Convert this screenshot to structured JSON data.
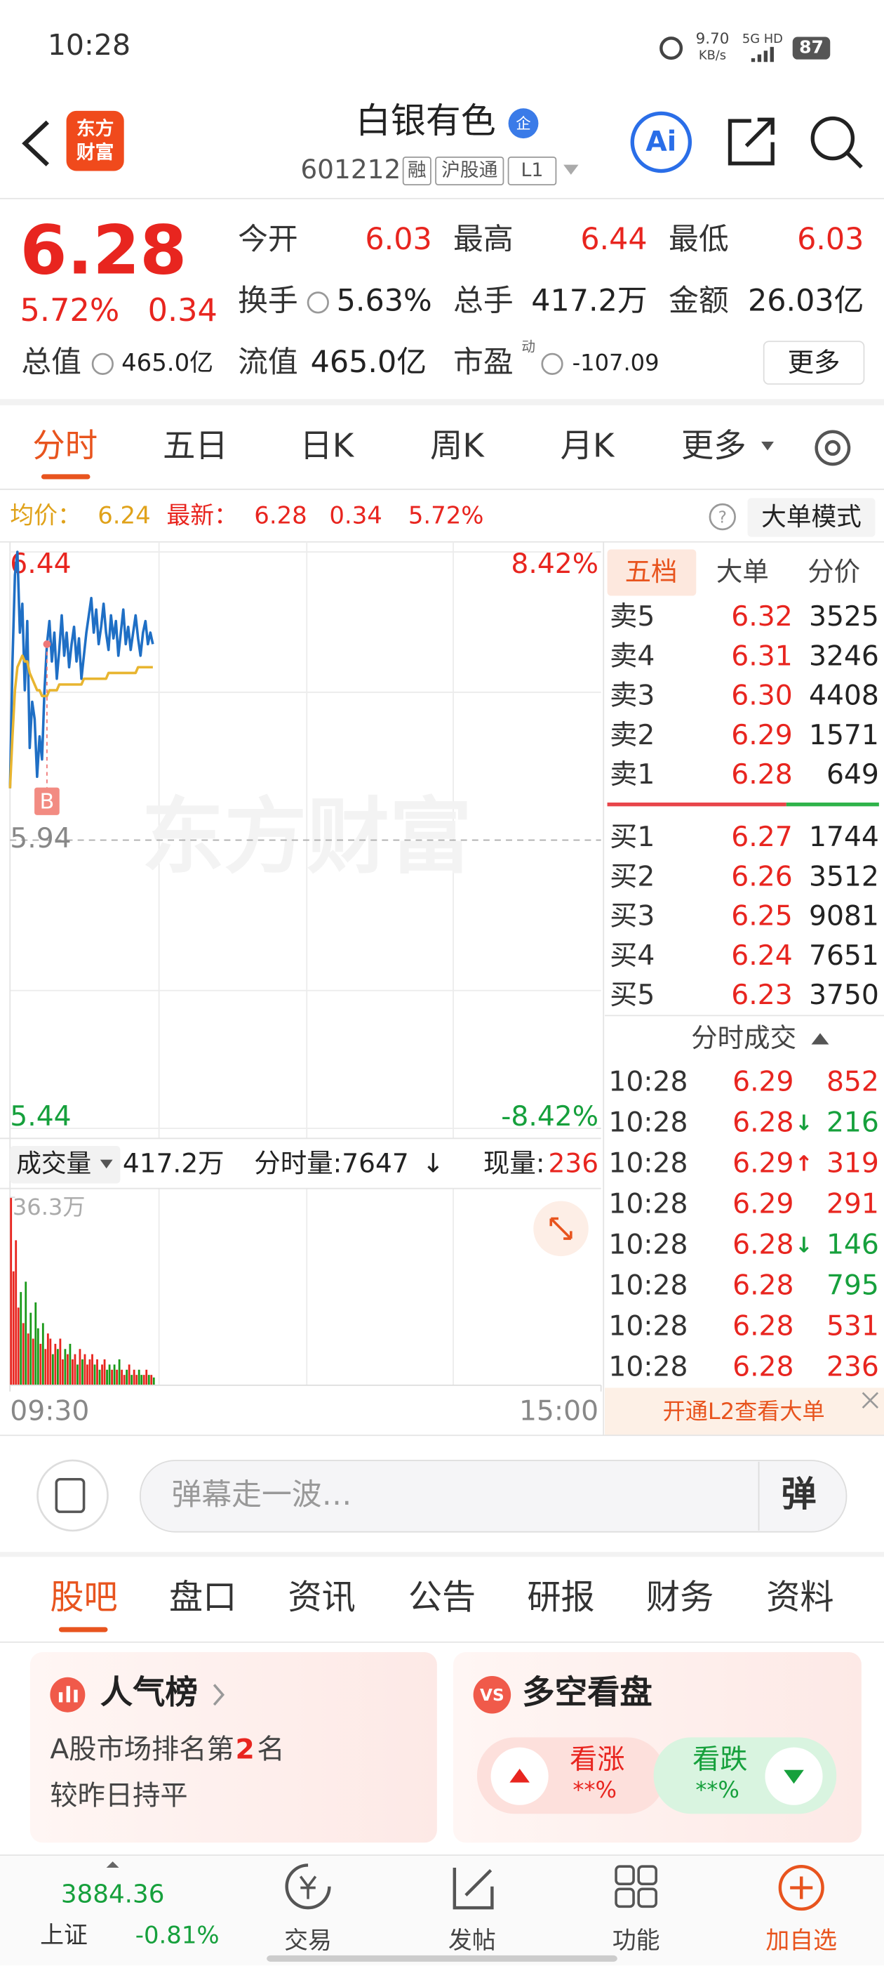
{
  "status_bar": {
    "time": "10:28",
    "net_speed": "9.70",
    "net_unit": "KB/s",
    "network": "5G HD",
    "battery": "87"
  },
  "header": {
    "logo": [
      "东方",
      "财富"
    ],
    "title": "白银有色",
    "badge": "企",
    "code": "601212",
    "tags": [
      "融",
      "沪股通",
      "L1"
    ],
    "ai": "Ai"
  },
  "quote": {
    "price": "6.28",
    "change_pct": "5.72%",
    "change": "0.34",
    "fields": [
      {
        "label": "今开",
        "value": "6.03"
      },
      {
        "label": "最高",
        "value": "6.44"
      },
      {
        "label": "最低",
        "value": "6.03"
      },
      {
        "label": "换手",
        "value": "5.63%"
      },
      {
        "label": "总手",
        "value": "417.2万"
      },
      {
        "label": "金额",
        "value": "26.03亿"
      },
      {
        "label": "总值",
        "value": "465.0亿"
      },
      {
        "label": "流值",
        "value": "465.0亿"
      },
      {
        "label": "市盈",
        "sup": "动",
        "value": "-107.09"
      }
    ],
    "more": "更多"
  },
  "tabs": [
    "分时",
    "五日",
    "日K",
    "周K",
    "月K",
    "更多"
  ],
  "info": {
    "avg_label": "均价：",
    "avg": "6.24",
    "latest_label": "最新：",
    "latest": "6.28",
    "change": "0.34",
    "change_pct": "5.72%",
    "help": "?",
    "mode": "大单模式"
  },
  "chart_data": [
    {
      "type": "line",
      "watermark": "东方财富",
      "annotations": [
        "B"
      ],
      "x": [
        0,
        1,
        2,
        3,
        4,
        5,
        6,
        7,
        8,
        9,
        10,
        11,
        12,
        13,
        14,
        15,
        16,
        17,
        18,
        19,
        20,
        21,
        22,
        23,
        24,
        25,
        26,
        27,
        28,
        29,
        30,
        31,
        32,
        33,
        34,
        35,
        36,
        37,
        38,
        39,
        40,
        41,
        42,
        43,
        44,
        45,
        46,
        47,
        48,
        49,
        50,
        51,
        52,
        53,
        54,
        55,
        56,
        57,
        58
      ],
      "xlim": [
        0,
        240
      ],
      "xticks": [
        {
          "value": 0,
          "label": "09:30"
        },
        {
          "value": 240,
          "label": "15:00"
        }
      ],
      "ylim": [
        5.44,
        6.44
      ],
      "yticks": [
        6.44,
        5.94,
        5.44
      ],
      "y2lim": [
        -8.42,
        8.42
      ],
      "y2ticks": [
        {
          "value": 8.42,
          "label": "8.42%"
        },
        {
          "value": -8.42,
          "label": "-8.42%"
        }
      ],
      "series": [
        {
          "color": "#1f6fc5",
          "values": [
            6.03,
            6.25,
            6.4,
            6.44,
            6.3,
            6.35,
            6.2,
            6.32,
            6.1,
            6.18,
            6.15,
            6.05,
            6.12,
            6.08,
            6.2,
            6.28,
            6.32,
            6.25,
            6.3,
            6.22,
            6.27,
            6.33,
            6.26,
            6.3,
            6.24,
            6.28,
            6.31,
            6.25,
            6.29,
            6.22,
            6.26,
            6.3,
            6.33,
            6.36,
            6.3,
            6.34,
            6.28,
            6.31,
            6.35,
            6.3,
            6.27,
            6.33,
            6.29,
            6.32,
            6.26,
            6.3,
            6.34,
            6.28,
            6.31,
            6.27,
            6.3,
            6.33,
            6.29,
            6.26,
            6.3,
            6.32,
            6.28,
            6.3,
            6.28
          ]
        },
        {
          "color": "#e8b530",
          "values": [
            6.03,
            6.12,
            6.2,
            6.24,
            6.25,
            6.26,
            6.25,
            6.25,
            6.23,
            6.22,
            6.21,
            6.2,
            6.2,
            6.19,
            6.19,
            6.19,
            6.2,
            6.2,
            6.2,
            6.2,
            6.21,
            6.21,
            6.21,
            6.21,
            6.21,
            6.21,
            6.21,
            6.21,
            6.21,
            6.21,
            6.22,
            6.22,
            6.22,
            6.22,
            6.22,
            6.22,
            6.22,
            6.22,
            6.22,
            6.22,
            6.23,
            6.23,
            6.23,
            6.23,
            6.23,
            6.23,
            6.23,
            6.23,
            6.23,
            6.23,
            6.23,
            6.23,
            6.24,
            6.24,
            6.24,
            6.24,
            6.24,
            6.24,
            6.24
          ]
        }
      ]
    },
    {
      "type": "bar",
      "up_color": "#e8251f",
      "down_color": "#1a9a1a",
      "x": [
        0,
        1,
        2,
        3,
        4,
        5,
        6,
        7,
        8,
        9,
        10,
        11,
        12,
        13,
        14,
        15,
        16,
        17,
        18,
        19,
        20,
        21,
        22,
        23,
        24,
        25,
        26,
        27,
        28,
        29,
        30,
        31,
        32,
        33,
        34,
        35,
        36,
        37,
        38,
        39,
        40,
        41,
        42,
        43,
        44,
        45,
        46,
        47,
        48,
        49,
        50,
        51,
        52,
        53,
        54,
        55,
        56,
        57,
        58
      ],
      "xlim": [
        0,
        240
      ],
      "ylim": [
        0,
        36.3
      ],
      "yticks": [
        {
          "value": 36.3,
          "label": "36.3万"
        }
      ],
      "values": [
        36.3,
        22,
        28,
        15,
        18,
        12,
        20,
        10,
        14,
        9,
        16,
        11,
        8,
        12,
        7,
        10,
        9,
        6,
        8,
        7,
        9,
        5,
        7,
        6,
        8,
        5,
        6,
        4,
        7,
        5,
        6,
        4,
        5,
        6,
        4,
        5,
        3,
        4,
        5,
        3,
        4,
        3,
        4,
        3,
        5,
        3,
        2,
        3,
        4,
        2,
        3,
        2,
        3,
        2,
        2,
        3,
        2,
        2,
        1.5
      ]
    }
  ],
  "volume_bar": {
    "label": "成交量",
    "total": "417.2万",
    "tick_label": "分时量:7647",
    "arrow": "↓",
    "current_label": "现量:",
    "current": "236"
  },
  "order_book": {
    "tabs": [
      "五档",
      "大单",
      "分价"
    ],
    "asks": [
      {
        "label": "卖5",
        "price": "6.32",
        "volume": "3525"
      },
      {
        "label": "卖4",
        "price": "6.31",
        "volume": "3246"
      },
      {
        "label": "卖3",
        "price": "6.30",
        "volume": "4408"
      },
      {
        "label": "卖2",
        "price": "6.29",
        "volume": "1571"
      },
      {
        "label": "卖1",
        "price": "6.28",
        "volume": "649"
      }
    ],
    "bids": [
      {
        "label": "买1",
        "price": "6.27",
        "volume": "1744"
      },
      {
        "label": "买2",
        "price": "6.26",
        "volume": "3512"
      },
      {
        "label": "买3",
        "price": "6.25",
        "volume": "9081"
      },
      {
        "label": "买4",
        "price": "6.24",
        "volume": "7651"
      },
      {
        "label": "买5",
        "price": "6.23",
        "volume": "3750"
      }
    ],
    "trades_title": "分时成交",
    "trades": [
      {
        "time": "10:28",
        "price": "6.29",
        "volume": "852",
        "color": "#e8251f"
      },
      {
        "time": "10:28",
        "price": "6.28",
        "arrow": "↓",
        "volume": "216",
        "color": "#16a03c"
      },
      {
        "time": "10:28",
        "price": "6.29",
        "arrow": "↑",
        "volume": "319",
        "color": "#e8251f"
      },
      {
        "time": "10:28",
        "price": "6.29",
        "volume": "291",
        "color": "#e8251f"
      },
      {
        "time": "10:28",
        "price": "6.28",
        "arrow": "↓",
        "volume": "146",
        "color": "#16a03c"
      },
      {
        "time": "10:28",
        "price": "6.28",
        "volume": "795",
        "color": "#16a03c"
      },
      {
        "time": "10:28",
        "price": "6.28",
        "volume": "531",
        "color": "#e8251f"
      },
      {
        "time": "10:28",
        "price": "6.28",
        "volume": "236",
        "color": "#e8251f"
      }
    ],
    "banner": "开通L2查看大单"
  },
  "danmaku": {
    "placeholder": "弹幕走一波…",
    "button": "弹"
  },
  "section_tabs": [
    "股吧",
    "盘口",
    "资讯",
    "公告",
    "研报",
    "财务",
    "资料"
  ],
  "cards": {
    "popularity": {
      "title": "人气榜",
      "rank_prefix": "A股市场排名第",
      "rank": "2",
      "rank_suffix": "名",
      "note": "较昨日持平"
    },
    "sentiment": {
      "icon": "VS",
      "title": "多空看盘",
      "up_label": "看涨",
      "up_value": "**%",
      "down_label": "看跌",
      "down_value": "**%"
    }
  },
  "bottom_nav": {
    "index_value": "3884.36",
    "index_name": "上证",
    "index_change": "-0.81%",
    "items": [
      "交易",
      "发帖",
      "功能",
      "加自选"
    ]
  }
}
